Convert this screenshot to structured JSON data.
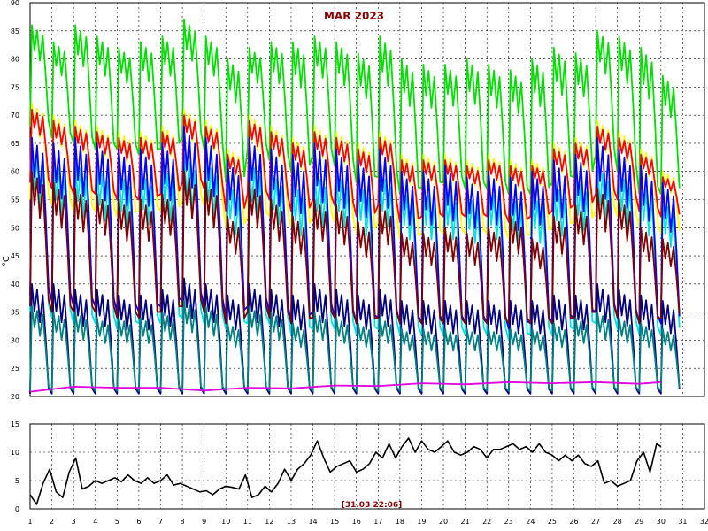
{
  "chart_data": [
    {
      "type": "line",
      "title": "MAR 2023",
      "ylabel": "°C",
      "xlim": [
        1,
        32
      ],
      "ylim": [
        20,
        90
      ],
      "x_ticks": [
        1,
        2,
        3,
        4,
        5,
        6,
        7,
        8,
        9,
        10,
        11,
        12,
        13,
        14,
        15,
        16,
        17,
        18,
        19,
        20,
        21,
        22,
        23,
        24,
        25,
        26,
        27,
        28,
        29,
        30,
        31,
        32
      ],
      "y_ticks": [
        20,
        25,
        30,
        35,
        40,
        45,
        50,
        55,
        60,
        65,
        70,
        75,
        80,
        85,
        90
      ],
      "grid": true,
      "series": [
        {
          "color": "#00e000",
          "x": [
            1,
            2,
            3,
            4,
            5,
            6,
            7,
            8,
            9,
            10,
            11,
            12,
            13,
            14,
            15,
            16,
            17,
            18,
            19,
            20,
            21,
            22,
            23,
            24,
            25,
            26,
            27,
            28,
            29,
            30
          ],
          "y_high": [
            86,
            83,
            86,
            84,
            82,
            83,
            84,
            87,
            84,
            80,
            82,
            83,
            83,
            84,
            83,
            81,
            84,
            80,
            79,
            79,
            80,
            79,
            78,
            80,
            82,
            81,
            85,
            84,
            82,
            77
          ],
          "y_low": [
            68,
            66,
            65,
            64,
            64,
            63,
            64,
            66,
            64,
            58,
            64,
            62,
            60,
            63,
            61,
            58,
            59,
            56,
            57,
            58,
            57,
            57,
            56,
            56,
            58,
            59,
            63,
            60,
            56,
            56
          ]
        },
        {
          "color": "#ffff00",
          "x": [
            1,
            2,
            3,
            4,
            5,
            6,
            7,
            8,
            9,
            10,
            11,
            12,
            13,
            14,
            15,
            16,
            17,
            18,
            19,
            20,
            21,
            22,
            23,
            24,
            25,
            26,
            27,
            28,
            29,
            30
          ],
          "y_high": [
            72,
            70,
            69,
            68,
            67,
            67,
            68,
            71,
            69,
            64,
            70,
            68,
            66,
            68,
            67,
            65,
            67,
            63,
            63,
            63,
            62,
            63,
            62,
            62,
            65,
            66,
            69,
            67,
            64,
            60
          ],
          "y_low": [
            55,
            54,
            53,
            53,
            52,
            53,
            53,
            55,
            54,
            50,
            52,
            52,
            50,
            52,
            51,
            49,
            51,
            48,
            49,
            49,
            49,
            49,
            48,
            49,
            50,
            51,
            53,
            52,
            50,
            49
          ]
        },
        {
          "color": "#ff0000",
          "x": [
            1,
            2,
            3,
            4,
            5,
            6,
            7,
            8,
            9,
            10,
            11,
            12,
            13,
            14,
            15,
            16,
            17,
            18,
            19,
            20,
            21,
            22,
            23,
            24,
            25,
            26,
            27,
            28,
            29,
            30
          ],
          "y_high": [
            71,
            69,
            68,
            67,
            66,
            66,
            67,
            70,
            68,
            63,
            69,
            67,
            65,
            67,
            66,
            64,
            66,
            62,
            62,
            62,
            61,
            62,
            61,
            61,
            64,
            65,
            68,
            66,
            63,
            59
          ],
          "y_low": [
            58,
            57,
            56,
            56,
            55,
            55,
            56,
            58,
            57,
            53,
            56,
            55,
            53,
            55,
            54,
            52,
            54,
            51,
            52,
            52,
            52,
            52,
            51,
            52,
            53,
            54,
            56,
            55,
            53,
            52
          ]
        },
        {
          "color": "#00e0e0",
          "x": [
            1,
            2,
            3,
            4,
            5,
            6,
            7,
            8,
            9,
            10,
            11,
            12,
            13,
            14,
            15,
            16,
            17,
            18,
            19,
            20,
            21,
            22,
            23,
            24,
            25,
            26,
            27,
            28,
            29,
            30
          ],
          "y_high": [
            64,
            62,
            62,
            61,
            60,
            60,
            61,
            63,
            62,
            58,
            62,
            60,
            58,
            60,
            60,
            58,
            60,
            57,
            57,
            57,
            56,
            57,
            56,
            56,
            58,
            59,
            61,
            60,
            58,
            55
          ],
          "y_low": [
            35,
            34,
            33,
            33,
            32,
            33,
            33,
            34,
            33,
            32,
            33,
            33,
            31,
            32,
            32,
            31,
            32,
            31,
            31,
            31,
            31,
            31,
            30,
            31,
            31,
            32,
            33,
            32,
            31,
            31
          ]
        },
        {
          "color": "#0000ff",
          "x": [
            1,
            2,
            3,
            4,
            5,
            6,
            7,
            8,
            9,
            10,
            11,
            12,
            13,
            14,
            15,
            16,
            17,
            18,
            19,
            20,
            21,
            22,
            23,
            24,
            25,
            26,
            27,
            28,
            29,
            30
          ],
          "y_high": [
            66,
            65,
            66,
            65,
            64,
            64,
            65,
            68,
            66,
            62,
            66,
            64,
            63,
            65,
            64,
            62,
            64,
            60,
            60,
            61,
            59,
            60,
            59,
            60,
            62,
            63,
            66,
            64,
            61,
            58
          ],
          "y_low": [
            38,
            37,
            36,
            36,
            35,
            35,
            36,
            37,
            36,
            34,
            36,
            35,
            33,
            35,
            34,
            33,
            34,
            33,
            33,
            33,
            33,
            33,
            32,
            33,
            33,
            34,
            35,
            34,
            33,
            33
          ]
        },
        {
          "color": "#800000",
          "x": [
            1,
            2,
            3,
            4,
            5,
            6,
            7,
            8,
            9,
            10,
            11,
            12,
            13,
            14,
            15,
            16,
            17,
            18,
            19,
            20,
            21,
            22,
            23,
            24,
            25,
            26,
            27,
            28,
            29,
            30
          ],
          "y_high": [
            60,
            58,
            57,
            56,
            55,
            55,
            56,
            60,
            58,
            52,
            58,
            55,
            52,
            55,
            54,
            51,
            54,
            49,
            49,
            50,
            49,
            50,
            52,
            48,
            52,
            54,
            57,
            55,
            50,
            48
          ],
          "y_low": [
            36,
            35,
            35,
            35,
            34,
            34,
            35,
            36,
            35,
            33,
            35,
            34,
            33,
            34,
            34,
            33,
            34,
            33,
            33,
            33,
            33,
            33,
            33,
            33,
            33,
            34,
            35,
            34,
            33,
            34
          ]
        },
        {
          "color": "#000080",
          "x": [
            1,
            2,
            3,
            4,
            5,
            6,
            7,
            8,
            9,
            10,
            11,
            12,
            13,
            14,
            15,
            16,
            17,
            18,
            19,
            20,
            21,
            22,
            23,
            24,
            25,
            26,
            27,
            28,
            29,
            30
          ],
          "y_high": [
            40,
            40,
            39,
            39,
            38,
            38,
            39,
            41,
            40,
            38,
            40,
            39,
            38,
            40,
            39,
            38,
            39,
            37,
            37,
            37,
            37,
            37,
            37,
            37,
            38,
            38,
            40,
            39,
            38,
            37
          ],
          "y_low": [
            20.5,
            20.5,
            20.5,
            20.5,
            20.5,
            20.5,
            20.5,
            20.5,
            20.5,
            20.5,
            20.5,
            20.5,
            20.5,
            20.5,
            20.5,
            20.5,
            20.5,
            20.5,
            20.5,
            20.5,
            20.5,
            20.5,
            20.5,
            20.5,
            20.5,
            20.5,
            20.5,
            20.5,
            20.5,
            20.5
          ]
        },
        {
          "color": "#008080",
          "x": [
            1,
            2,
            3,
            4,
            5,
            6,
            7,
            8,
            9,
            10,
            11,
            12,
            13,
            14,
            15,
            16,
            17,
            18,
            19,
            20,
            21,
            22,
            23,
            24,
            25,
            26,
            27,
            28,
            29,
            30
          ],
          "y_high": [
            36,
            35,
            35,
            34,
            34,
            34,
            35,
            37,
            36,
            33,
            36,
            35,
            33,
            35,
            34,
            33,
            34,
            32,
            32,
            32,
            32,
            32,
            32,
            32,
            33,
            34,
            35,
            34,
            33,
            32
          ],
          "y_low": [
            21,
            21,
            21,
            21,
            21,
            21,
            21,
            21,
            21,
            21,
            21,
            21,
            21,
            21,
            21,
            21,
            21,
            21,
            21,
            21,
            21,
            21,
            21,
            21,
            21,
            21,
            21,
            21,
            21,
            21
          ]
        },
        {
          "color": "#e000e0",
          "x": [
            1,
            3,
            5,
            7,
            9,
            11,
            13,
            15,
            17,
            19,
            21,
            23,
            25,
            27,
            29,
            30
          ],
          "y": [
            21.0,
            21.6,
            21.7,
            21.4,
            21.2,
            21.4,
            21.6,
            21.8,
            22.0,
            22.2,
            22.3,
            22.4,
            22.5,
            22.4,
            22.4,
            22.4
          ]
        }
      ]
    },
    {
      "type": "line",
      "xlim": [
        1,
        32
      ],
      "ylim": [
        0,
        15
      ],
      "x_ticks": [
        1,
        2,
        3,
        4,
        5,
        6,
        7,
        8,
        9,
        10,
        11,
        12,
        13,
        14,
        15,
        16,
        17,
        18,
        19,
        20,
        21,
        22,
        23,
        24,
        25,
        26,
        27,
        28,
        29,
        30,
        31,
        32
      ],
      "y_ticks": [
        0,
        5,
        10,
        15
      ],
      "grid": true,
      "annotation": "[31.03 22:06]",
      "series": [
        {
          "color": "#000000",
          "x": [
            1.0,
            1.3,
            1.6,
            1.9,
            2.2,
            2.5,
            2.8,
            3.1,
            3.4,
            3.7,
            4.0,
            4.3,
            4.6,
            4.9,
            5.2,
            5.5,
            5.8,
            6.1,
            6.4,
            6.7,
            7.0,
            7.3,
            7.6,
            7.9,
            8.2,
            8.5,
            8.8,
            9.1,
            9.4,
            9.7,
            10.0,
            10.3,
            10.6,
            10.9,
            11.2,
            11.5,
            11.8,
            12.1,
            12.4,
            12.7,
            13.0,
            13.3,
            13.6,
            13.9,
            14.2,
            14.5,
            14.8,
            15.1,
            15.4,
            15.7,
            16.0,
            16.3,
            16.6,
            16.9,
            17.2,
            17.5,
            17.8,
            18.1,
            18.4,
            18.7,
            19.0,
            19.3,
            19.6,
            19.9,
            20.2,
            20.5,
            20.8,
            21.1,
            21.4,
            21.7,
            22.0,
            22.3,
            22.6,
            22.9,
            23.2,
            23.5,
            23.8,
            24.1,
            24.4,
            24.7,
            25.0,
            25.3,
            25.6,
            25.9,
            26.2,
            26.5,
            26.8,
            27.1,
            27.4,
            27.7,
            28.0,
            28.3,
            28.6,
            28.9,
            29.2,
            29.5,
            29.8,
            30.0
          ],
          "y": [
            2.5,
            0.8,
            4.5,
            7.0,
            3.0,
            2.0,
            6.5,
            9.0,
            3.5,
            4.0,
            5.0,
            4.5,
            5.0,
            5.5,
            4.8,
            6.0,
            5.0,
            4.5,
            5.5,
            4.5,
            5.0,
            6.0,
            4.2,
            4.5,
            4.0,
            3.5,
            3.0,
            3.2,
            2.5,
            3.5,
            4.0,
            3.8,
            3.5,
            6.0,
            2.0,
            2.5,
            4.0,
            3.0,
            4.5,
            7.0,
            5.0,
            7.0,
            8.0,
            9.5,
            12.0,
            9.0,
            6.5,
            7.5,
            8.0,
            8.5,
            6.5,
            7.0,
            8.0,
            10.0,
            9.0,
            11.5,
            9.0,
            11.0,
            12.5,
            10.0,
            12.0,
            10.5,
            10.0,
            11.0,
            12.0,
            10.0,
            9.5,
            10.0,
            11.0,
            10.5,
            9.0,
            10.5,
            10.5,
            11.0,
            11.5,
            10.5,
            11.0,
            10.0,
            11.5,
            10.0,
            9.5,
            8.5,
            9.5,
            8.5,
            9.5,
            8.0,
            7.5,
            8.5,
            4.5,
            5.0,
            4.0,
            4.5,
            5.0,
            8.5,
            10.0,
            6.5,
            11.5,
            11.0
          ]
        }
      ]
    }
  ]
}
